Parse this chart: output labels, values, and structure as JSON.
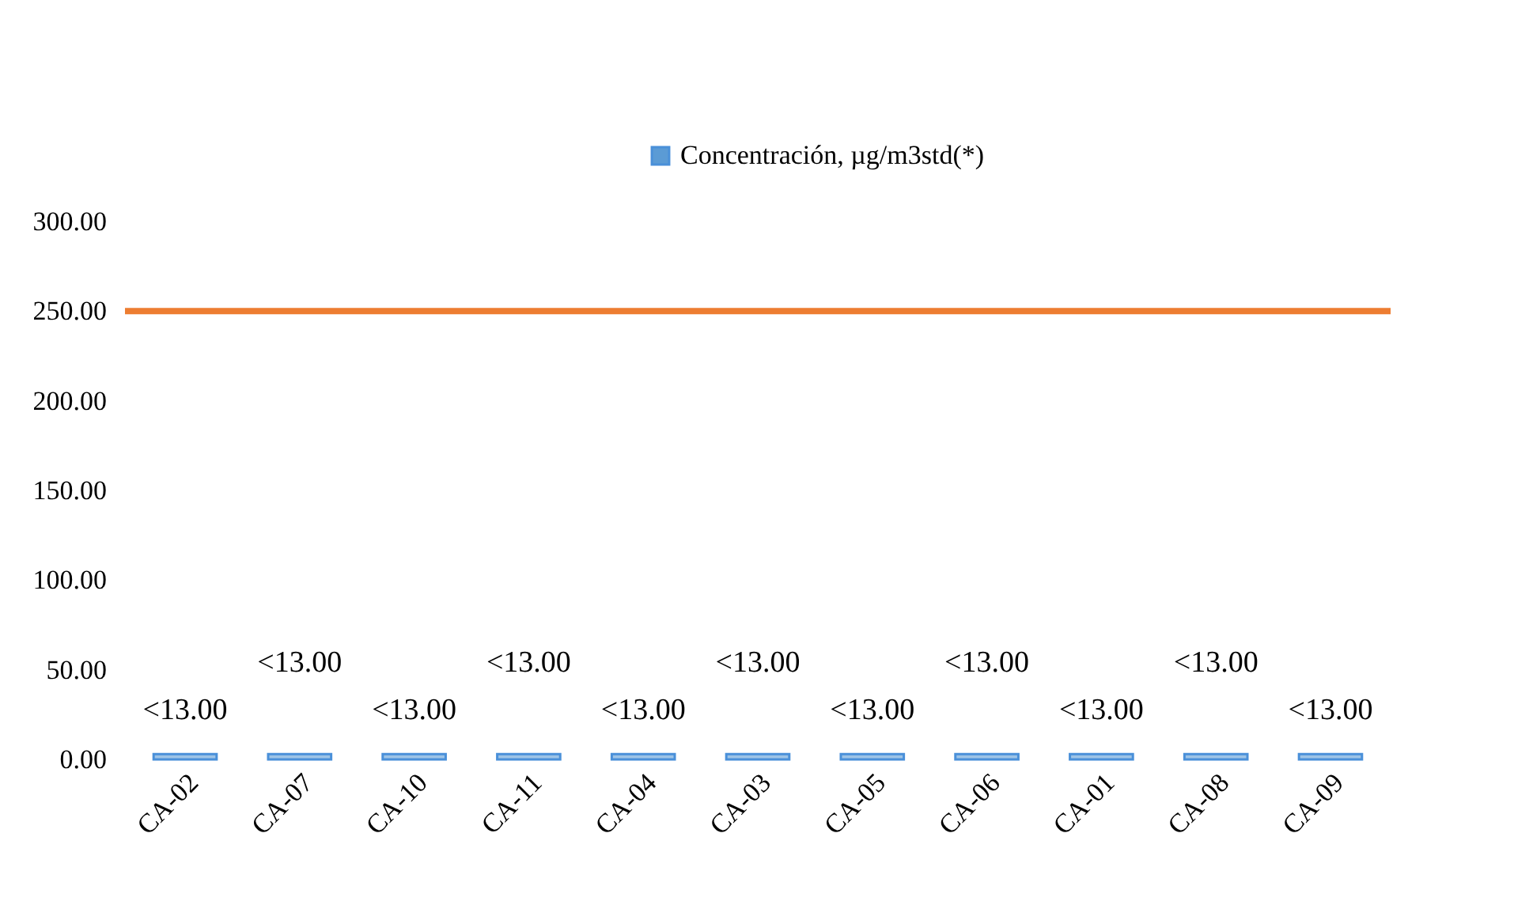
{
  "chart_data": {
    "type": "bar",
    "categories": [
      "CA-02",
      "CA-07",
      "CA-10",
      "CA-11",
      "CA-04",
      "CA-03",
      "CA-05",
      "CA-06",
      "CA-01",
      "CA-08",
      "CA-09"
    ],
    "series": [
      {
        "name": "Concentración, µg/m3std(*)",
        "color": "#5b9bd5",
        "values": [
          3,
          3,
          3,
          3,
          3,
          3,
          3,
          3,
          3,
          3,
          3
        ],
        "value_labels": [
          "<13.00",
          "<13.00",
          "<13.00",
          "<13.00",
          "<13.00",
          "<13.00",
          "<13.00",
          "<13.00",
          "<13.00",
          "<13.00",
          "<13.00"
        ]
      }
    ],
    "ylim": [
      0,
      300
    ],
    "yticks": [
      {
        "value": 0,
        "label": "0.00"
      },
      {
        "value": 50,
        "label": "50.00"
      },
      {
        "value": 100,
        "label": "100.00"
      },
      {
        "value": 150,
        "label": "150.00"
      },
      {
        "value": 200,
        "label": "200.00"
      },
      {
        "value": 250,
        "label": "250.00"
      },
      {
        "value": 300,
        "label": "300.00"
      }
    ],
    "ref_lines": [
      {
        "axis": "y",
        "value": 250,
        "color": "#ed7d31"
      }
    ],
    "grid": false,
    "legend": "top"
  }
}
